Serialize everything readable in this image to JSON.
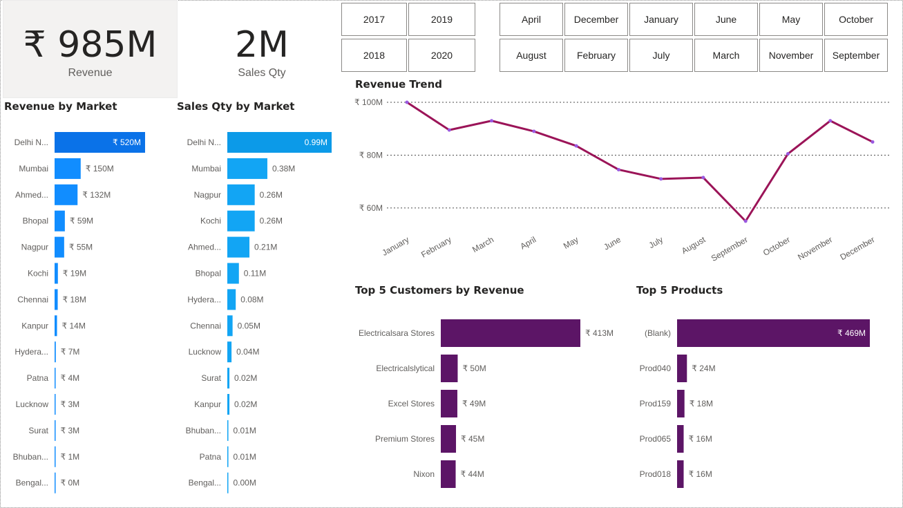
{
  "kpis": {
    "revenue_value": "₹ 985M",
    "revenue_label": "Revenue",
    "qty_value": "2M",
    "qty_label": "Sales Qty"
  },
  "year_slicer": [
    "2017",
    "2019",
    "2018",
    "2020"
  ],
  "month_slicer": [
    "April",
    "December",
    "January",
    "June",
    "May",
    "October",
    "August",
    "February",
    "July",
    "March",
    "November",
    "September"
  ],
  "colors": {
    "revenue_bar": "#118dff",
    "revenue_bar_top": "#0a72e8",
    "qty_bar": "#12a5f4",
    "qty_bar_top": "#0c9ae8",
    "trend_line": "#9b1458",
    "trend_marker": "#9a59e0",
    "purple_bar": "#5c1566"
  },
  "chart_data": [
    {
      "id": "revenue_by_market",
      "type": "bar",
      "title": "Revenue by Market",
      "categories": [
        "Delhi N...",
        "Mumbai",
        "Ahmed...",
        "Bhopal",
        "Nagpur",
        "Kochi",
        "Chennai",
        "Kanpur",
        "Hydera...",
        "Patna",
        "Lucknow",
        "Surat",
        "Bhuban...",
        "Bengal..."
      ],
      "values": [
        520,
        150,
        132,
        59,
        55,
        19,
        18,
        14,
        7,
        4,
        3,
        3,
        1,
        0
      ],
      "labels": [
        "₹ 520M",
        "₹ 150M",
        "₹ 132M",
        "₹ 59M",
        "₹ 55M",
        "₹ 19M",
        "₹ 18M",
        "₹ 14M",
        "₹ 7M",
        "₹ 4M",
        "₹ 3M",
        "₹ 3M",
        "₹ 1M",
        "₹ 0M"
      ],
      "max": 520
    },
    {
      "id": "sales_qty_by_market",
      "type": "bar",
      "title": "Sales Qty by Market",
      "categories": [
        "Delhi N...",
        "Mumbai",
        "Nagpur",
        "Kochi",
        "Ahmed...",
        "Bhopal",
        "Hydera...",
        "Chennai",
        "Lucknow",
        "Surat",
        "Kanpur",
        "Bhuban...",
        "Patna",
        "Bengal..."
      ],
      "values": [
        0.99,
        0.38,
        0.26,
        0.26,
        0.21,
        0.11,
        0.08,
        0.05,
        0.04,
        0.02,
        0.02,
        0.01,
        0.01,
        0.0
      ],
      "labels": [
        "0.99M",
        "0.38M",
        "0.26M",
        "0.26M",
        "0.21M",
        "0.11M",
        "0.08M",
        "0.05M",
        "0.04M",
        "0.02M",
        "0.02M",
        "0.01M",
        "0.01M",
        "0.00M"
      ],
      "max": 0.99
    },
    {
      "id": "revenue_trend",
      "type": "line",
      "title": "Revenue Trend",
      "x": [
        "January",
        "February",
        "March",
        "April",
        "May",
        "June",
        "July",
        "August",
        "September",
        "October",
        "November",
        "December"
      ],
      "values": [
        100,
        89.5,
        93,
        89,
        83.5,
        74.5,
        71,
        71.5,
        55,
        80.5,
        93,
        85
      ],
      "yticks": [
        "₹ 100M",
        "₹ 80M",
        "₹ 60M"
      ],
      "ytick_values": [
        100,
        80,
        60
      ],
      "ylim": [
        55,
        100
      ],
      "grid": true
    },
    {
      "id": "top5_customers",
      "type": "bar",
      "title": "Top 5 Customers by Revenue",
      "categories": [
        "Electricalsara Stores",
        "Electricalslytical",
        "Excel Stores",
        "Premium Stores",
        "Nixon"
      ],
      "values": [
        413,
        50,
        49,
        45,
        44
      ],
      "labels": [
        "₹ 413M",
        "₹ 50M",
        "₹ 49M",
        "₹ 45M",
        "₹ 44M"
      ],
      "max": 413
    },
    {
      "id": "top5_products",
      "type": "bar",
      "title": "Top 5 Products",
      "categories": [
        "(Blank)",
        "Prod040",
        "Prod159",
        "Prod065",
        "Prod018"
      ],
      "values": [
        469,
        24,
        18,
        16,
        16
      ],
      "labels": [
        "₹ 469M",
        "₹ 24M",
        "₹ 18M",
        "₹ 16M",
        "₹ 16M"
      ],
      "max": 469
    }
  ]
}
